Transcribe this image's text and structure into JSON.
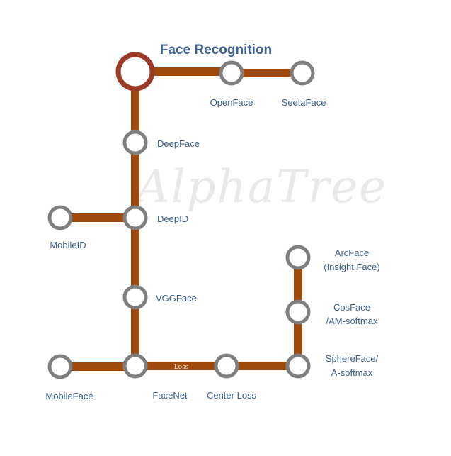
{
  "title": "Face Recognition",
  "watermark": "AlphaTree",
  "colors": {
    "track": "#a0490c",
    "node_ring": "#7f7f7f",
    "start_ring": "#9b3a27",
    "label": "#3e628f"
  },
  "nodes": {
    "start": "",
    "openface": "OpenFace",
    "seetaface": "SeetaFace",
    "deepface": "DeepFace",
    "deepid": "DeepID",
    "mobileid": "MobileID",
    "vggface": "VGGFace",
    "facenet": "FaceNet",
    "mobileface": "MobileFace",
    "centerloss": "Center Loss",
    "sphereface_1": "SphereFace/",
    "sphereface_2": "A-softmax",
    "cosface_1": "CosFace",
    "cosface_2": "/AM-softmax",
    "arcface_1": "ArcFace",
    "arcface_2": "(Insight Face)"
  },
  "edges": {
    "facenet_centerloss": "Loss"
  }
}
